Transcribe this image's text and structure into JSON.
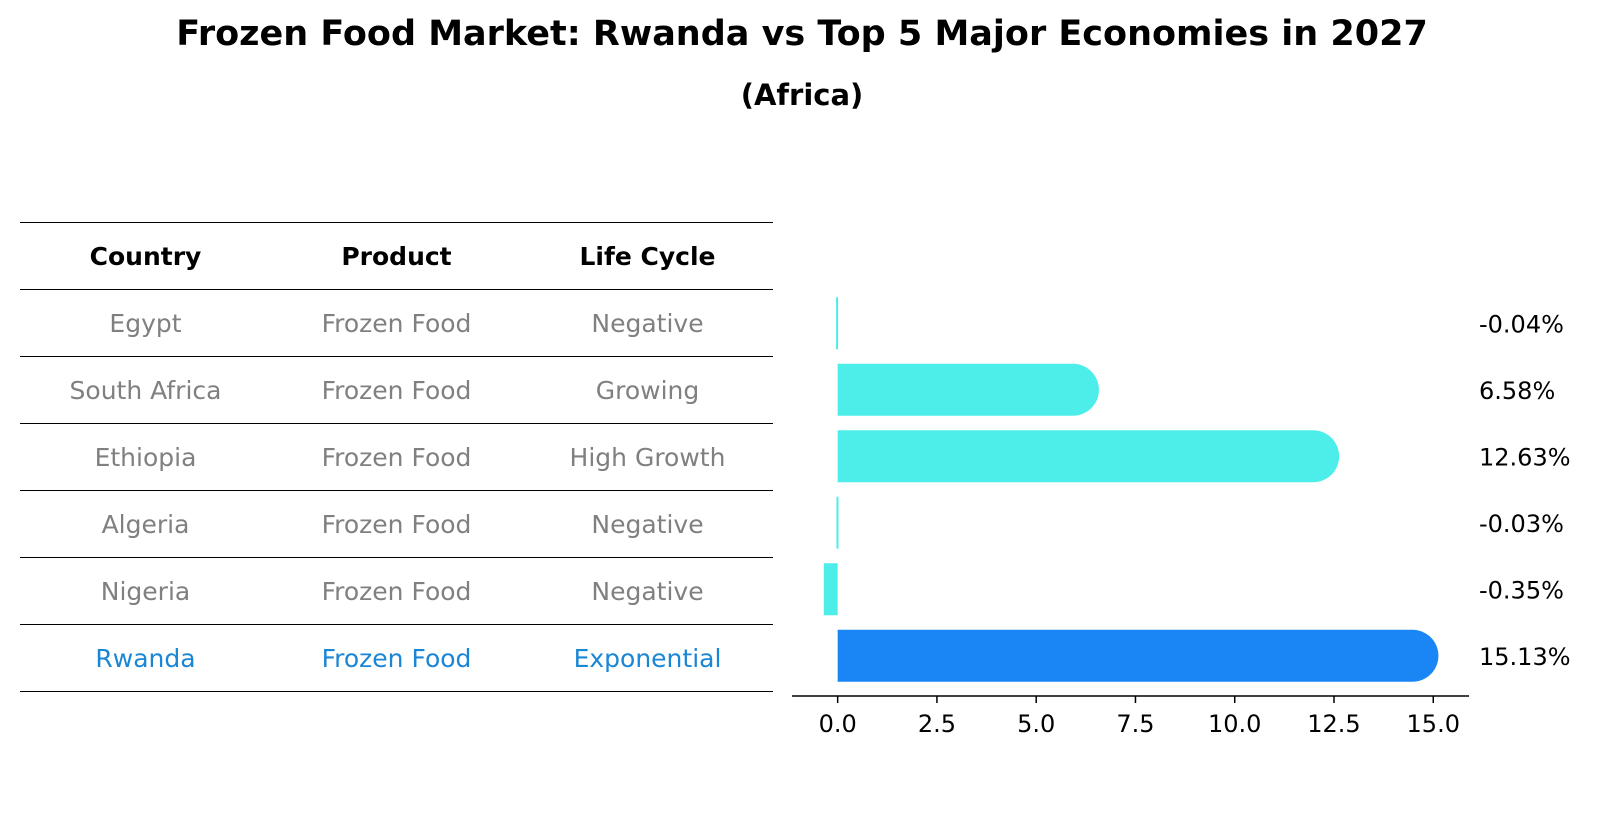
{
  "title": "Frozen Food Market: Rwanda vs Top 5 Major Economies in 2027",
  "subtitle": "(Africa)",
  "table": {
    "headers": [
      "Country",
      "Product",
      "Life Cycle"
    ],
    "rows": [
      {
        "country": "Egypt",
        "product": "Frozen Food",
        "life_cycle": "Negative"
      },
      {
        "country": "South Africa",
        "product": "Frozen Food",
        "life_cycle": "Growing"
      },
      {
        "country": "Ethiopia",
        "product": "Frozen Food",
        "life_cycle": "High Growth"
      },
      {
        "country": "Algeria",
        "product": "Frozen Food",
        "life_cycle": "Negative"
      },
      {
        "country": "Nigeria",
        "product": "Frozen Food",
        "life_cycle": "Negative"
      },
      {
        "country": "Rwanda",
        "product": "Frozen Food",
        "life_cycle": "Exponential"
      }
    ]
  },
  "colors": {
    "bar": "#4deeea",
    "highlight_bar": "#1a86f5",
    "highlight_text": "#1a86d6",
    "muted_text": "#808080"
  },
  "chart_data": {
    "type": "bar",
    "orientation": "horizontal",
    "categories": [
      "Egypt",
      "South Africa",
      "Ethiopia",
      "Algeria",
      "Nigeria",
      "Rwanda"
    ],
    "values": [
      -0.04,
      6.58,
      12.63,
      -0.03,
      -0.35,
      15.13
    ],
    "value_labels": [
      "-0.04%",
      "6.58%",
      "12.63%",
      "-0.03%",
      "-0.35%",
      "15.13%"
    ],
    "highlight": "Rwanda",
    "xlim": [
      -1.15,
      15.9
    ],
    "xticks": [
      0.0,
      2.5,
      5.0,
      7.5,
      10.0,
      12.5,
      15.0
    ],
    "xtick_labels": [
      "0.0",
      "2.5",
      "5.0",
      "7.5",
      "10.0",
      "12.5",
      "15.0"
    ]
  }
}
